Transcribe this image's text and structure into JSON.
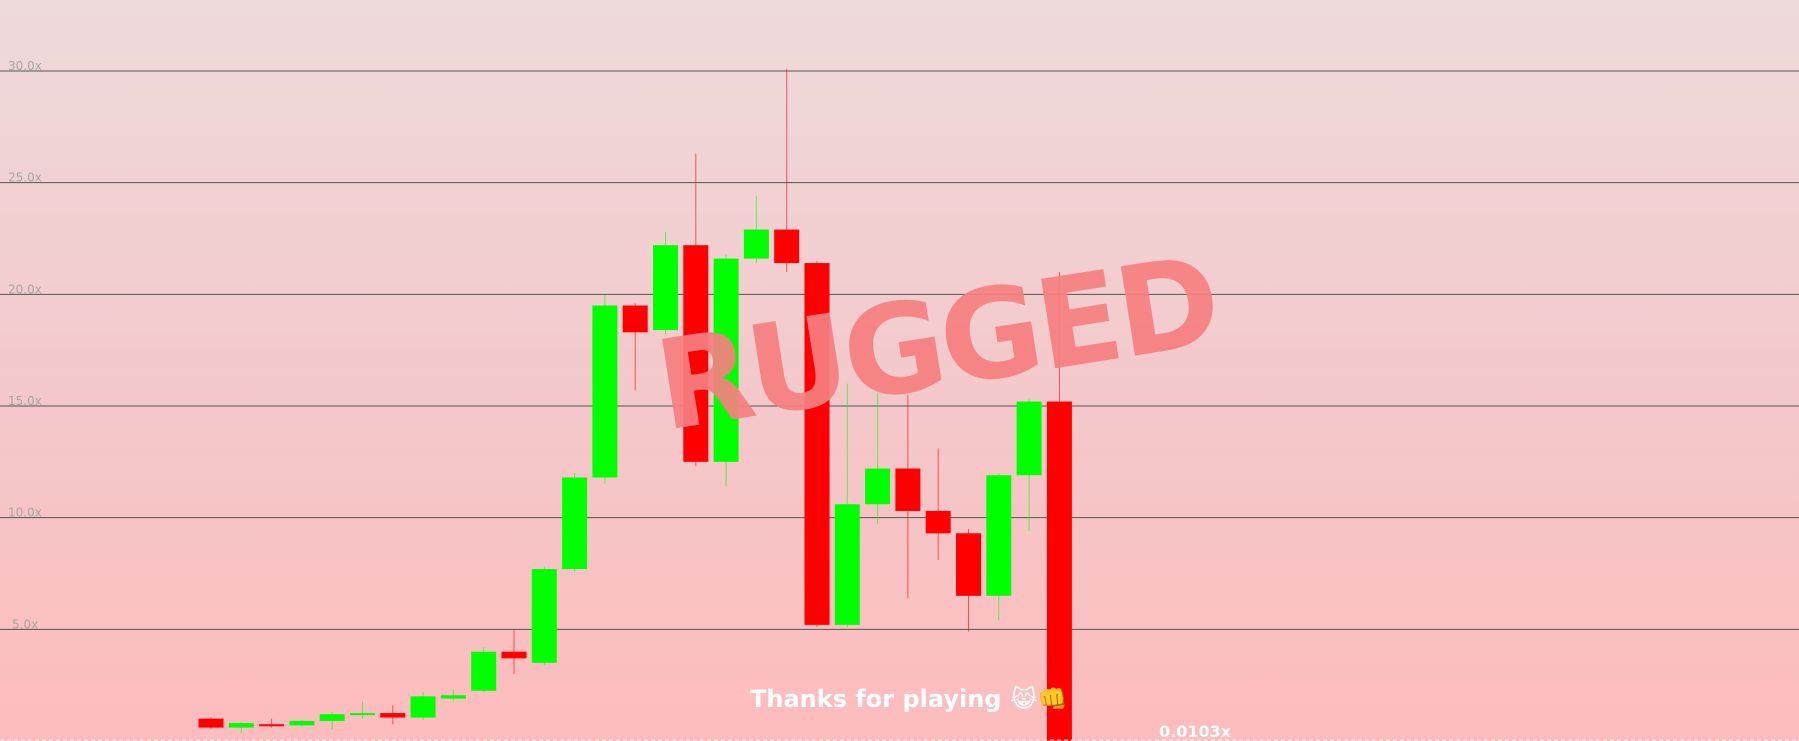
{
  "chart_data": {
    "type": "candlestick",
    "y_unit": "x",
    "ylim": [
      0,
      33.2
    ],
    "y_ticks": [
      "5.0x",
      "10.0x",
      "15.0x",
      "20.0x",
      "25.0x",
      "30.0x"
    ],
    "y_tick_values": [
      5,
      10,
      15,
      20,
      25,
      30
    ],
    "grid": true,
    "candles": [
      {
        "open": 1.0,
        "close": 0.6,
        "high": 1.05,
        "low": 0.55
      },
      {
        "open": 0.6,
        "close": 0.8,
        "high": 0.85,
        "low": 0.35
      },
      {
        "open": 0.75,
        "close": 0.7,
        "high": 1.0,
        "low": 0.6
      },
      {
        "open": 0.7,
        "close": 0.9,
        "high": 0.95,
        "low": 0.65
      },
      {
        "open": 0.9,
        "close": 1.2,
        "high": 1.3,
        "low": 0.5
      },
      {
        "open": 1.2,
        "close": 1.25,
        "high": 1.75,
        "low": 1.0
      },
      {
        "open": 1.25,
        "close": 1.05,
        "high": 1.6,
        "low": 0.75
      },
      {
        "open": 1.05,
        "close": 2.0,
        "high": 2.2,
        "low": 0.95
      },
      {
        "open": 1.9,
        "close": 2.05,
        "high": 2.3,
        "low": 1.8
      },
      {
        "open": 2.25,
        "close": 4.0,
        "high": 4.2,
        "low": 2.2
      },
      {
        "open": 4.0,
        "close": 3.7,
        "high": 5.0,
        "low": 3.0
      },
      {
        "open": 3.5,
        "close": 7.7,
        "high": 7.8,
        "low": 3.4
      },
      {
        "open": 7.7,
        "close": 11.8,
        "high": 12.0,
        "low": 7.6
      },
      {
        "open": 11.8,
        "close": 19.5,
        "high": 20.0,
        "low": 11.5
      },
      {
        "open": 19.5,
        "close": 18.3,
        "high": 19.6,
        "low": 15.7
      },
      {
        "open": 18.4,
        "close": 22.2,
        "high": 22.8,
        "low": 18.2
      },
      {
        "open": 22.2,
        "close": 12.5,
        "high": 26.3,
        "low": 12.3
      },
      {
        "open": 12.5,
        "close": 21.6,
        "high": 21.8,
        "low": 11.4
      },
      {
        "open": 21.6,
        "close": 22.9,
        "high": 24.4,
        "low": 21.4
      },
      {
        "open": 22.9,
        "close": 21.4,
        "high": 30.1,
        "low": 21.0
      },
      {
        "open": 21.4,
        "close": 5.2,
        "high": 21.5,
        "low": 5.1
      },
      {
        "open": 5.2,
        "close": 10.6,
        "high": 16.0,
        "low": 5.1
      },
      {
        "open": 10.6,
        "close": 12.2,
        "high": 15.6,
        "low": 9.7
      },
      {
        "open": 12.2,
        "close": 10.3,
        "high": 15.5,
        "low": 6.4
      },
      {
        "open": 10.3,
        "close": 9.3,
        "high": 13.1,
        "low": 8.1
      },
      {
        "open": 9.3,
        "close": 6.5,
        "high": 9.5,
        "low": 4.9
      },
      {
        "open": 6.5,
        "close": 11.9,
        "high": 12.0,
        "low": 5.4
      },
      {
        "open": 11.9,
        "close": 15.2,
        "high": 15.3,
        "low": 9.4
      },
      {
        "open": 15.2,
        "close": 0.0103,
        "high": 21.0,
        "low": 0.0103
      }
    ],
    "current_value_label": "0.0103x",
    "annotation": "RUGGED"
  },
  "footer": {
    "message": "Thanks for playing 😹👊"
  },
  "colors": {
    "up": "#00ff00",
    "down": "#ff0000",
    "gridline": "#555555",
    "tick_label": "#a9a2a3",
    "stamp": "#f77f80",
    "footer_text": "#ffffff"
  }
}
